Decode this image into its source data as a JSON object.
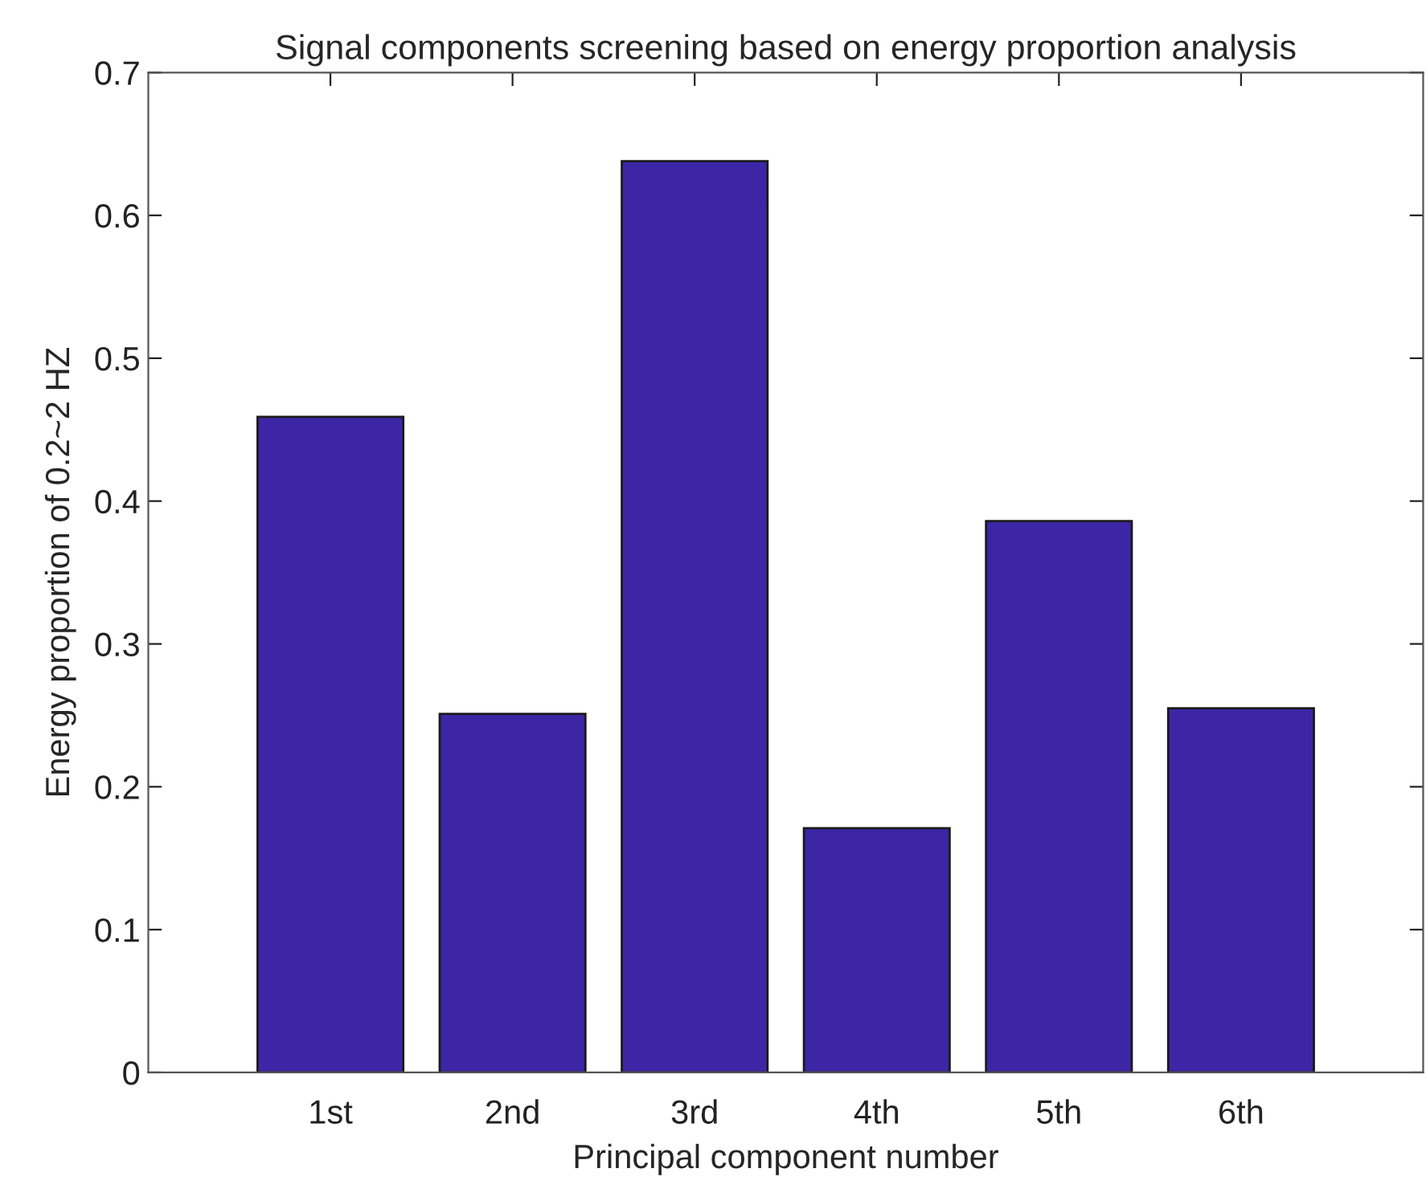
{
  "chart_data": {
    "type": "bar",
    "title": "Signal components screening based on energy proportion analysis",
    "xlabel": "Principal component number",
    "ylabel": "Energy proportion of 0.2~2 HZ",
    "categories": [
      "1st",
      "2nd",
      "3rd",
      "4th",
      "5th",
      "6th"
    ],
    "values": [
      0.459,
      0.251,
      0.638,
      0.171,
      0.386,
      0.255
    ],
    "color": "#3d26a6",
    "ylim": [
      0,
      0.7
    ],
    "yticks": [
      {
        "value": 0,
        "label": "0"
      },
      0.1,
      0.2,
      0.3,
      0.4,
      0.5,
      0.6,
      0.7
    ]
  }
}
